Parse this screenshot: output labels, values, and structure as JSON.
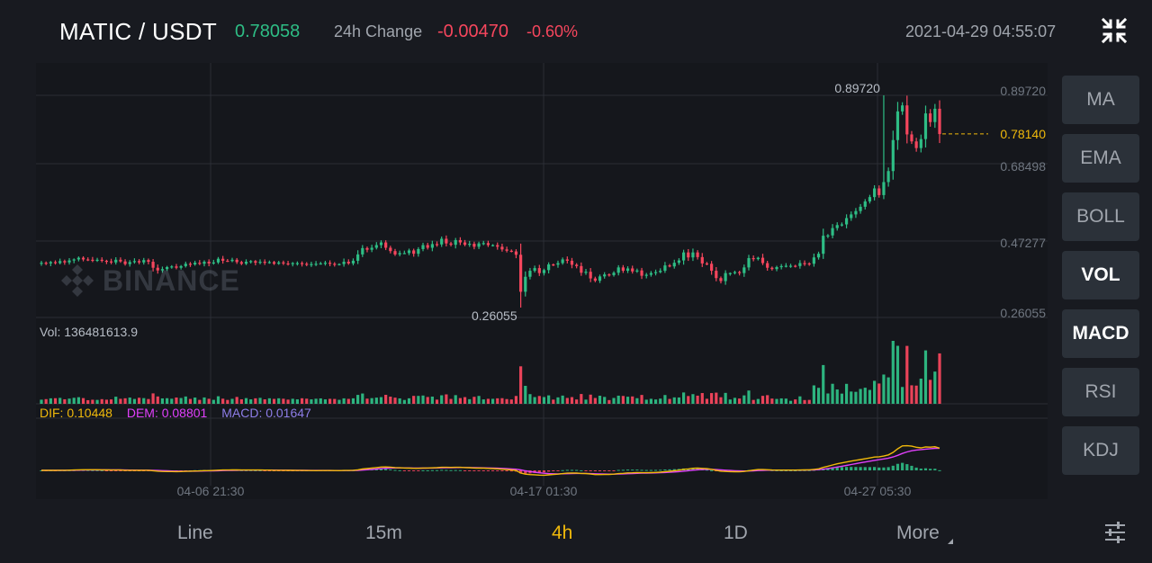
{
  "header": {
    "pair": "MATIC / USDT",
    "last_price": "0.78058",
    "change_label": "24h Change",
    "change_abs": "-0.00470",
    "change_pct": "-0.60%",
    "datetime": "2021-04-29 04:55:07",
    "collapse_icon": "collapse-arrows-icon"
  },
  "watermark": {
    "text": "BINANCE",
    "icon": "binance-logo-icon"
  },
  "indicators": {
    "vol_label": "Vol: 136481613.9",
    "dif_label": "DIF: 0.10448",
    "dem_label": "DEM: 0.08801",
    "macd_label": "MACD: 0.01647"
  },
  "side_buttons": [
    {
      "label": "MA",
      "active": false
    },
    {
      "label": "EMA",
      "active": false
    },
    {
      "label": "BOLL",
      "active": false
    },
    {
      "label": "VOL",
      "active": true
    },
    {
      "label": "MACD",
      "active": true
    },
    {
      "label": "RSI",
      "active": false
    },
    {
      "label": "KDJ",
      "active": false
    }
  ],
  "bottom_tabs": {
    "line": "Line",
    "m15": "15m",
    "h4": "4h",
    "d1": "1D",
    "more": "More",
    "active": "4h",
    "settings_icon": "sliders-icon"
  },
  "colors": {
    "up": "#2ebd85",
    "down": "#f6465d",
    "dif": "#f0b90b",
    "dem": "#e040fb",
    "current_price": "#f0b90b"
  },
  "chart_data": {
    "type": "candlestick",
    "interval": "4h",
    "y_ticks": [
      "0.89720",
      "0.68498",
      "0.47277",
      "0.26055"
    ],
    "ylim": [
      0.26055,
      0.8972
    ],
    "current_price_label": "0.78140",
    "current_price": 0.7814,
    "max_label": "0.89720",
    "max_value": 0.8972,
    "min_label": "0.26055",
    "min_value": 0.26055,
    "x_ticks": [
      "04-06 21:30",
      "04-17 01:30",
      "04-27 05:30"
    ],
    "series_close": [
      0.395,
      0.393,
      0.397,
      0.394,
      0.4,
      0.396,
      0.402,
      0.405,
      0.41,
      0.405,
      0.404,
      0.402,
      0.404,
      0.401,
      0.399,
      0.396,
      0.404,
      0.399,
      0.391,
      0.397,
      0.4,
      0.396,
      0.403,
      0.398,
      0.38,
      0.372,
      0.376,
      0.382,
      0.384,
      0.38,
      0.385,
      0.392,
      0.39,
      0.395,
      0.392,
      0.398,
      0.393,
      0.396,
      0.407,
      0.401,
      0.4,
      0.404,
      0.397,
      0.392,
      0.398,
      0.4,
      0.395,
      0.398,
      0.395,
      0.397,
      0.392,
      0.396,
      0.393,
      0.392,
      0.394,
      0.394,
      0.392,
      0.39,
      0.391,
      0.392,
      0.393,
      0.395,
      0.392,
      0.391,
      0.391,
      0.398,
      0.393,
      0.401,
      0.42,
      0.439,
      0.434,
      0.44,
      0.448,
      0.456,
      0.44,
      0.43,
      0.42,
      0.424,
      0.424,
      0.432,
      0.422,
      0.436,
      0.448,
      0.44,
      0.451,
      0.45,
      0.467,
      0.453,
      0.449,
      0.463,
      0.456,
      0.449,
      0.452,
      0.443,
      0.453,
      0.454,
      0.448,
      0.448,
      0.443,
      0.435,
      0.431,
      0.429,
      0.419,
      0.308,
      0.353,
      0.371,
      0.379,
      0.364,
      0.373,
      0.39,
      0.389,
      0.394,
      0.405,
      0.401,
      0.389,
      0.385,
      0.365,
      0.368,
      0.348,
      0.341,
      0.354,
      0.36,
      0.358,
      0.365,
      0.381,
      0.371,
      0.378,
      0.369,
      0.372,
      0.356,
      0.359,
      0.364,
      0.367,
      0.371,
      0.387,
      0.384,
      0.395,
      0.402,
      0.426,
      0.411,
      0.426,
      0.412,
      0.393,
      0.392,
      0.371,
      0.349,
      0.34,
      0.364,
      0.364,
      0.367,
      0.364,
      0.381,
      0.409,
      0.406,
      0.41,
      0.394,
      0.38,
      0.376,
      0.382,
      0.385,
      0.386,
      0.386,
      0.385,
      0.394,
      0.393,
      0.392,
      0.411,
      0.422,
      0.476,
      0.477,
      0.499,
      0.508,
      0.51,
      0.529,
      0.54,
      0.55,
      0.563,
      0.579,
      0.592,
      0.618,
      0.598,
      0.637,
      0.67,
      0.763,
      0.849,
      0.867,
      0.78,
      0.759,
      0.739,
      0.766,
      0.843,
      0.817,
      0.857,
      0.781
    ]
  }
}
